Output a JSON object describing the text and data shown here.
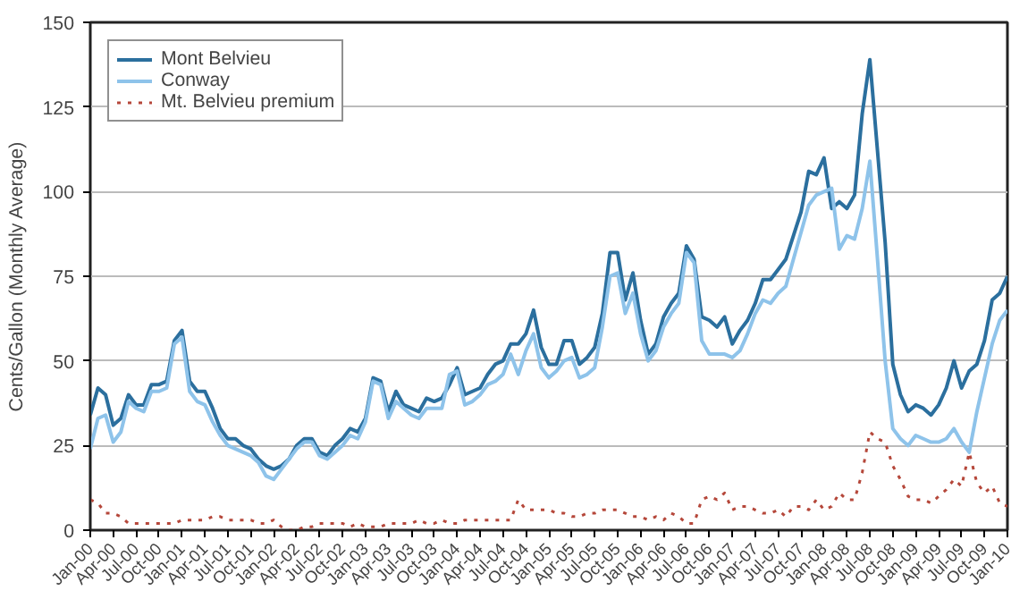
{
  "chart_data": {
    "type": "line",
    "ylabel": "Cents/Gallon (Monthly Average)",
    "categories": [
      "Jan-00",
      null,
      null,
      "Apr-00",
      null,
      null,
      "Jul-00",
      null,
      null,
      "Oct-00",
      null,
      null,
      "Jan-01",
      null,
      null,
      "Apr-01",
      null,
      null,
      "Jul-01",
      null,
      null,
      "Oct-01",
      null,
      null,
      "Jan-02",
      null,
      null,
      "Apr-02",
      null,
      null,
      "Jul-02",
      null,
      null,
      "Oct-02",
      null,
      null,
      "Jan-03",
      null,
      null,
      "Apr-03",
      null,
      null,
      "Jul-03",
      null,
      null,
      "Oct-03",
      null,
      null,
      "Jan-04",
      null,
      null,
      "Apr-04",
      null,
      null,
      "Jul-04",
      null,
      null,
      "Oct-04",
      null,
      null,
      "Jan-05",
      null,
      null,
      "Apr-05",
      null,
      null,
      "Jul-05",
      null,
      null,
      "Oct-05",
      null,
      null,
      "Jan-06",
      null,
      null,
      "Apr-06",
      null,
      null,
      "Jul-06",
      null,
      null,
      "Oct-06",
      null,
      null,
      "Jan-07",
      null,
      null,
      "Apr-07",
      null,
      null,
      "Jul-07",
      null,
      null,
      "Oct-07",
      null,
      null,
      "Jan-08",
      null,
      null,
      "Apr-08",
      null,
      null,
      "Jul-08",
      null,
      null,
      "Oct-08",
      null,
      null,
      "Jan-09",
      null,
      null,
      "Apr-09",
      null,
      null,
      "Jul-09",
      null,
      null,
      "Oct-09",
      null,
      null,
      "Jan-10"
    ],
    "series": [
      {
        "name": "Mont Belvieu",
        "color": "#2b6f9e",
        "line_style": "solid",
        "values": [
          34,
          42,
          40,
          31,
          33,
          40,
          37,
          37,
          43,
          43,
          44,
          56,
          59,
          44,
          41,
          41,
          36,
          30,
          27,
          27,
          25,
          24,
          21,
          19,
          18,
          19,
          21,
          25,
          27,
          27,
          23,
          22,
          25,
          27,
          30,
          29,
          33,
          45,
          44,
          35,
          41,
          37,
          36,
          35,
          39,
          38,
          39,
          43,
          48,
          40,
          41,
          42,
          46,
          49,
          50,
          55,
          55,
          58,
          65,
          54,
          49,
          49,
          56,
          56,
          49,
          51,
          54,
          64,
          82,
          82,
          68,
          76,
          62,
          52,
          55,
          63,
          67,
          70,
          84,
          80,
          63,
          62,
          60,
          63,
          55,
          59,
          62,
          67,
          74,
          74,
          77,
          80,
          87,
          94,
          106,
          105,
          110,
          95,
          97,
          95,
          99,
          123,
          139,
          112,
          85,
          49,
          40,
          35,
          37,
          36,
          34,
          37,
          42,
          50,
          42,
          47,
          49,
          56,
          68,
          70,
          75
        ]
      },
      {
        "name": "Conway",
        "color": "#8ec3ea",
        "line_style": "solid",
        "values": [
          24,
          33,
          34,
          26,
          29,
          38,
          36,
          35,
          41,
          41,
          42,
          55,
          57,
          41,
          38,
          37,
          32,
          28,
          25,
          24,
          23,
          22,
          20,
          16,
          15,
          18,
          21,
          24,
          26,
          26,
          22,
          21,
          23,
          25,
          28,
          27,
          32,
          44,
          43,
          33,
          38,
          36,
          34,
          33,
          36,
          36,
          36,
          46,
          47,
          37,
          38,
          40,
          43,
          44,
          46,
          52,
          46,
          53,
          58,
          48,
          45,
          47,
          50,
          51,
          45,
          46,
          48,
          60,
          75,
          76,
          64,
          70,
          58,
          50,
          53,
          60,
          64,
          67,
          82,
          79,
          56,
          52,
          52,
          52,
          51,
          53,
          58,
          64,
          68,
          67,
          70,
          72,
          80,
          88,
          96,
          99,
          100,
          101,
          83,
          87,
          86,
          95,
          109,
          80,
          50,
          30,
          27,
          25,
          28,
          27,
          26,
          26,
          27,
          30,
          26,
          23,
          35,
          45,
          55,
          62,
          65
        ]
      },
      {
        "name": "Mt. Belvieu premium",
        "color": "#b5473a",
        "line_style": "dotted",
        "values": [
          9,
          8,
          5,
          5,
          4,
          2,
          2,
          2,
          2,
          2,
          2,
          2,
          3,
          3,
          3,
          3,
          4,
          4,
          3,
          3,
          3,
          3,
          2,
          2,
          3,
          1,
          0,
          0,
          1,
          1,
          2,
          2,
          2,
          2,
          1,
          2,
          1,
          1,
          1,
          2,
          2,
          2,
          2,
          3,
          2,
          2,
          3,
          2,
          2,
          3,
          3,
          3,
          3,
          3,
          3,
          3,
          9,
          6,
          6,
          6,
          6,
          5,
          5,
          4,
          4,
          5,
          5,
          6,
          6,
          6,
          5,
          4,
          4,
          3,
          4,
          3,
          5,
          4,
          2,
          2,
          9,
          10,
          9,
          11,
          6,
          7,
          7,
          6,
          5,
          5,
          6,
          4,
          7,
          7,
          6,
          9,
          6,
          7,
          11,
          9,
          9,
          17,
          29,
          27,
          26,
          19,
          15,
          10,
          9,
          9,
          8,
          10,
          12,
          15,
          13,
          23,
          14,
          11,
          13,
          8,
          7
        ]
      }
    ],
    "ylim": [
      0,
      150
    ],
    "yticks": [
      0,
      25,
      50,
      75,
      100,
      125,
      150
    ],
    "grid": "y",
    "legend": "top left"
  }
}
